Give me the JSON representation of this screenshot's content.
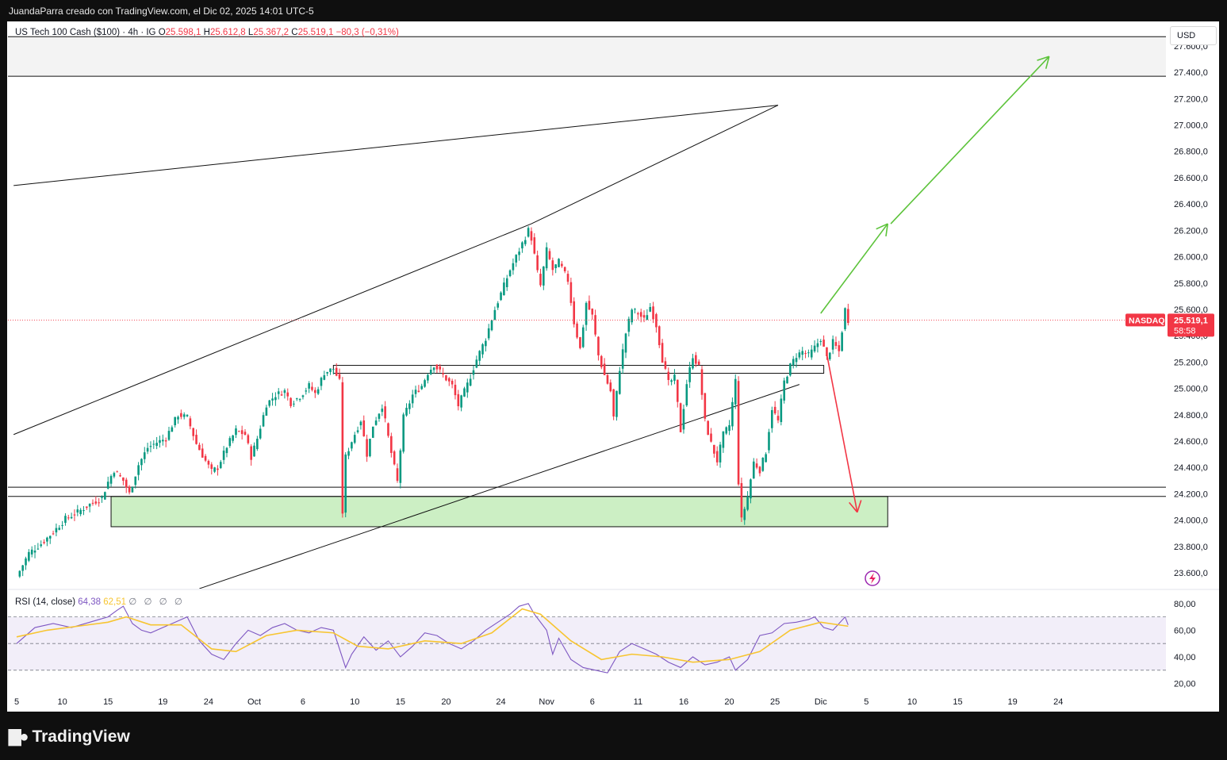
{
  "header": {
    "caption": "JuandaParra creado con TradingView.com, el Dic 02, 2025 14:01 UTC-5"
  },
  "legend": {
    "symbol": "US Tech 100 Cash ($100) · 4h · IG",
    "o_label": "O",
    "o_value": "25.598,1",
    "h_label": "H",
    "h_value": "25.612,8",
    "l_label": "L",
    "l_value": "25.367,2",
    "c_label": "C",
    "c_value": "25.519,1",
    "change": "−80,3 (−0,31%)"
  },
  "currency_button": "USD",
  "price_tag": {
    "name": "NASDAQ",
    "value": "25.519,1",
    "countdown": "58:58"
  },
  "rsi_legend": {
    "label": "RSI (14, close)",
    "rsi": "64,38",
    "ma": "62,51",
    "extra": "∅ ∅ ∅ ∅"
  },
  "footer": {
    "brand": "TradingView"
  },
  "colors": {
    "up": "#089981",
    "down": "#f23645",
    "rsi_line": "#7e57c2",
    "rsi_ma": "#f7c531",
    "green_zone": "#ccefc4",
    "arrow_up": "#5cc33a",
    "arrow_down": "#f23645"
  },
  "chart_data": [
    {
      "type": "candlestick",
      "title": "US Tech 100 Cash ($100) · 4h · IG",
      "ylim": [
        23480,
        27780
      ],
      "y_ticks": [
        "27.600,0",
        "27.400,0",
        "27.200,0",
        "27.000,0",
        "26.800,0",
        "26.600,0",
        "26.400,0",
        "26.200,0",
        "26.000,0",
        "25.800,0",
        "25.600,0",
        "25.400,0",
        "25.200,0",
        "25.000,0",
        "24.800,0",
        "24.600,0",
        "24.400,0",
        "24.200,0",
        "24.000,0",
        "23.800,0",
        "23.600,0"
      ],
      "x_ticks": [
        "5",
        "10",
        "15",
        "19",
        "24",
        "Oct",
        "6",
        "10",
        "15",
        "20",
        "24",
        "Nov",
        "6",
        "11",
        "16",
        "20",
        "25",
        "Dic",
        "5",
        "10",
        "15",
        "19",
        "24"
      ],
      "x_tick_index": [
        0,
        15,
        30,
        48,
        63,
        78,
        94,
        111,
        126,
        141,
        159,
        174,
        189,
        204,
        219,
        234,
        249,
        264,
        279,
        294,
        309,
        327,
        342
      ],
      "last_price": 25519.1,
      "close_path": [
        [
          0,
          23570
        ],
        [
          4,
          23750
        ],
        [
          8,
          23820
        ],
        [
          12,
          23910
        ],
        [
          16,
          24010
        ],
        [
          20,
          24060
        ],
        [
          24,
          24120
        ],
        [
          28,
          24170
        ],
        [
          30,
          24290
        ],
        [
          32,
          24380
        ],
        [
          35,
          24300
        ],
        [
          37,
          24200
        ],
        [
          40,
          24420
        ],
        [
          43,
          24550
        ],
        [
          46,
          24590
        ],
        [
          49,
          24620
        ],
        [
          51,
          24720
        ],
        [
          53,
          24800
        ],
        [
          56,
          24780
        ],
        [
          59,
          24580
        ],
        [
          62,
          24450
        ],
        [
          64,
          24370
        ],
        [
          66,
          24400
        ],
        [
          69,
          24560
        ],
        [
          72,
          24680
        ],
        [
          75,
          24650
        ],
        [
          77,
          24480
        ],
        [
          79,
          24620
        ],
        [
          82,
          24880
        ],
        [
          85,
          24950
        ],
        [
          88,
          24980
        ],
        [
          90,
          24890
        ],
        [
          93,
          24940
        ],
        [
          96,
          25020
        ],
        [
          98,
          24960
        ],
        [
          101,
          25120
        ],
        [
          104,
          25150
        ],
        [
          106,
          25050
        ],
        [
          107,
          24060
        ],
        [
          108,
          24480
        ],
        [
          110,
          24600
        ],
        [
          113,
          24760
        ],
        [
          115,
          24500
        ],
        [
          117,
          24720
        ],
        [
          120,
          24870
        ],
        [
          123,
          24510
        ],
        [
          125,
          24290
        ],
        [
          127,
          24780
        ],
        [
          130,
          24950
        ],
        [
          133,
          25020
        ],
        [
          135,
          25120
        ],
        [
          137,
          25180
        ],
        [
          140,
          25100
        ],
        [
          143,
          25020
        ],
        [
          145,
          24870
        ],
        [
          148,
          25030
        ],
        [
          151,
          25220
        ],
        [
          154,
          25380
        ],
        [
          157,
          25600
        ],
        [
          160,
          25780
        ],
        [
          162,
          25900
        ],
        [
          165,
          26050
        ],
        [
          168,
          26200
        ],
        [
          169,
          26140
        ],
        [
          171,
          25880
        ],
        [
          172,
          25780
        ],
        [
          174,
          26050
        ],
        [
          176,
          25900
        ],
        [
          178,
          25960
        ],
        [
          181,
          25820
        ],
        [
          183,
          25500
        ],
        [
          185,
          25300
        ],
        [
          187,
          25650
        ],
        [
          189,
          25550
        ],
        [
          191,
          25250
        ],
        [
          193,
          25100
        ],
        [
          195,
          24980
        ],
        [
          196,
          24780
        ],
        [
          198,
          25150
        ],
        [
          200,
          25420
        ],
        [
          202,
          25600
        ],
        [
          204,
          25570
        ],
        [
          206,
          25520
        ],
        [
          208,
          25620
        ],
        [
          210,
          25480
        ],
        [
          212,
          25220
        ],
        [
          214,
          25040
        ],
        [
          216,
          25080
        ],
        [
          218,
          24680
        ],
        [
          220,
          25040
        ],
        [
          222,
          25250
        ],
        [
          224,
          25160
        ],
        [
          226,
          24750
        ],
        [
          228,
          24580
        ],
        [
          230,
          24450
        ],
        [
          232,
          24650
        ],
        [
          234,
          24720
        ],
        [
          236,
          25060
        ],
        [
          237,
          24290
        ],
        [
          238,
          24000
        ],
        [
          240,
          24180
        ],
        [
          242,
          24440
        ],
        [
          244,
          24380
        ],
        [
          246,
          24520
        ],
        [
          248,
          24850
        ],
        [
          250,
          24750
        ],
        [
          252,
          25050
        ],
        [
          254,
          25170
        ],
        [
          256,
          25250
        ],
        [
          258,
          25280
        ],
        [
          260,
          25250
        ],
        [
          262,
          25310
        ],
        [
          264,
          25380
        ],
        [
          266,
          25230
        ],
        [
          268,
          25350
        ],
        [
          270,
          25280
        ],
        [
          272,
          25600
        ],
        [
          273,
          25519
        ]
      ],
      "zones": [
        {
          "y_from": 27370,
          "y_to": 27670,
          "fill": "#f3f3f3"
        },
        {
          "y_from": 23950,
          "y_to": 24180,
          "fill": "#ccefc4",
          "x_from": 31,
          "x_to": 286
        },
        {
          "y_from": 25115,
          "y_to": 25175,
          "fill": "none",
          "x_from": 104,
          "x_to": 265
        }
      ],
      "horizontal_lines": [
        27670,
        27370,
        24250,
        24180
      ],
      "trendlines": [
        [
          [
            -1,
            26540
          ],
          [
            250,
            27150
          ]
        ],
        [
          [
            -1,
            24650
          ],
          [
            169,
            26250
          ],
          [
            250,
            27150
          ]
        ],
        [
          [
            60,
            23480
          ],
          [
            257,
            25030
          ]
        ]
      ],
      "arrows": [
        {
          "color": "#5cc33a",
          "from": [
            264,
            25570
          ],
          "to": [
            286,
            26250
          ]
        },
        {
          "color": "#5cc33a",
          "from": [
            287,
            26250
          ],
          "to": [
            339,
            27520
          ]
        },
        {
          "color": "#f23645",
          "from": [
            266,
            25260
          ],
          "to": [
            276,
            24060
          ]
        }
      ]
    },
    {
      "type": "line",
      "title": "RSI (14, close)",
      "ylim": [
        15,
        90
      ],
      "y_ticks": [
        "80,00",
        "60,00",
        "40,00",
        "20,00"
      ],
      "bands": [
        70,
        50,
        30
      ],
      "series": [
        {
          "name": "RSI",
          "path": [
            [
              0,
              50
            ],
            [
              6,
              62
            ],
            [
              12,
              65
            ],
            [
              18,
              62
            ],
            [
              24,
              66
            ],
            [
              30,
              70
            ],
            [
              33,
              75
            ],
            [
              35,
              78
            ],
            [
              38,
              65
            ],
            [
              41,
              60
            ],
            [
              44,
              58
            ],
            [
              48,
              62
            ],
            [
              52,
              66
            ],
            [
              56,
              70
            ],
            [
              60,
              52
            ],
            [
              64,
              42
            ],
            [
              68,
              38
            ],
            [
              72,
              50
            ],
            [
              76,
              60
            ],
            [
              80,
              56
            ],
            [
              84,
              62
            ],
            [
              88,
              65
            ],
            [
              92,
              60
            ],
            [
              96,
              58
            ],
            [
              100,
              62
            ],
            [
              104,
              60
            ],
            [
              108,
              32
            ],
            [
              110,
              42
            ],
            [
              114,
              55
            ],
            [
              118,
              45
            ],
            [
              122,
              52
            ],
            [
              126,
              40
            ],
            [
              130,
              48
            ],
            [
              134,
              58
            ],
            [
              138,
              56
            ],
            [
              142,
              50
            ],
            [
              146,
              46
            ],
            [
              150,
              52
            ],
            [
              154,
              60
            ],
            [
              158,
              66
            ],
            [
              162,
              72
            ],
            [
              165,
              78
            ],
            [
              168,
              80
            ],
            [
              170,
              72
            ],
            [
              174,
              60
            ],
            [
              176,
              42
            ],
            [
              178,
              54
            ],
            [
              182,
              38
            ],
            [
              186,
              32
            ],
            [
              190,
              30
            ],
            [
              194,
              28
            ],
            [
              198,
              44
            ],
            [
              202,
              50
            ],
            [
              206,
              46
            ],
            [
              210,
              42
            ],
            [
              214,
              36
            ],
            [
              218,
              32
            ],
            [
              222,
              40
            ],
            [
              226,
              34
            ],
            [
              230,
              36
            ],
            [
              234,
              40
            ],
            [
              236,
              30
            ],
            [
              240,
              38
            ],
            [
              244,
              56
            ],
            [
              248,
              58
            ],
            [
              252,
              65
            ],
            [
              256,
              66
            ],
            [
              260,
              68
            ],
            [
              262,
              70
            ],
            [
              265,
              62
            ],
            [
              268,
              60
            ],
            [
              272,
              70
            ],
            [
              273,
              64
            ]
          ]
        },
        {
          "name": "MA",
          "path": [
            [
              0,
              55
            ],
            [
              10,
              60
            ],
            [
              20,
              63
            ],
            [
              30,
              66
            ],
            [
              36,
              70
            ],
            [
              44,
              64
            ],
            [
              54,
              64
            ],
            [
              64,
              46
            ],
            [
              72,
              44
            ],
            [
              82,
              56
            ],
            [
              92,
              60
            ],
            [
              104,
              58
            ],
            [
              112,
              48
            ],
            [
              122,
              46
            ],
            [
              134,
              52
            ],
            [
              146,
              50
            ],
            [
              156,
              58
            ],
            [
              166,
              76
            ],
            [
              172,
              72
            ],
            [
              182,
              52
            ],
            [
              192,
              38
            ],
            [
              202,
              42
            ],
            [
              212,
              40
            ],
            [
              222,
              36
            ],
            [
              234,
              38
            ],
            [
              244,
              44
            ],
            [
              254,
              60
            ],
            [
              264,
              66
            ],
            [
              273,
              63
            ]
          ]
        }
      ]
    }
  ]
}
